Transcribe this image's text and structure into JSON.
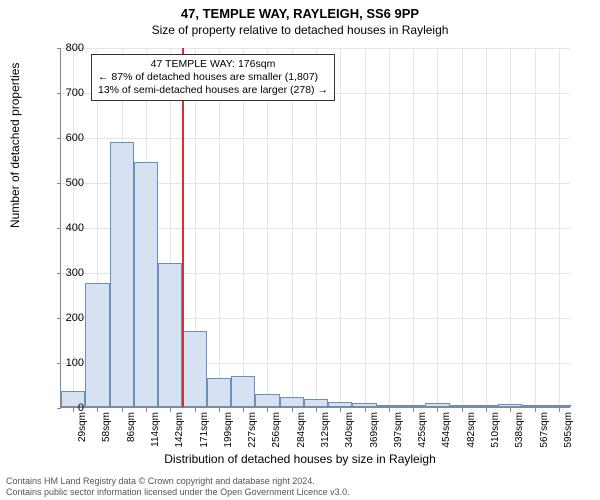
{
  "title_main": "47, TEMPLE WAY, RAYLEIGH, SS6 9PP",
  "title_sub": "Size of property relative to detached houses in Rayleigh",
  "ylabel": "Number of detached properties",
  "xlabel": "Distribution of detached houses by size in Rayleigh",
  "chart": {
    "type": "histogram",
    "ylim": [
      0,
      800
    ],
    "ytick_step": 100,
    "yticks": [
      0,
      100,
      200,
      300,
      400,
      500,
      600,
      700,
      800
    ],
    "xticks": [
      "29sqm",
      "58sqm",
      "86sqm",
      "114sqm",
      "142sqm",
      "171sqm",
      "199sqm",
      "227sqm",
      "256sqm",
      "284sqm",
      "312sqm",
      "340sqm",
      "369sqm",
      "397sqm",
      "425sqm",
      "454sqm",
      "482sqm",
      "510sqm",
      "538sqm",
      "567sqm",
      "595sqm"
    ],
    "bars": [
      35,
      275,
      590,
      545,
      320,
      170,
      65,
      70,
      30,
      22,
      18,
      12,
      10,
      5,
      3,
      8,
      2,
      2,
      7,
      3,
      2
    ],
    "bar_fill": "#d6e2f2",
    "bar_stroke": "#6a8fbf",
    "grid_color": "#e5e5e5",
    "background": "#ffffff",
    "reference_line_color": "#d83030",
    "reference_line_at_bin_right": 5
  },
  "annotation": {
    "line1": "47 TEMPLE WAY: 176sqm",
    "line2": "← 87% of detached houses are smaller (1,807)",
    "line3": "13% of semi-detached houses are larger (278) →"
  },
  "attribution": {
    "line1": "Contains HM Land Registry data © Crown copyright and database right 2024.",
    "line2": "Contains public sector information licensed under the Open Government Licence v3.0."
  },
  "style": {
    "title_fontsize": 13,
    "sub_fontsize": 12,
    "axis_label_fontsize": 12,
    "tick_fontsize": 11,
    "xtick_fontsize": 10,
    "annotation_fontsize": 10.5,
    "attribution_fontsize": 9
  }
}
